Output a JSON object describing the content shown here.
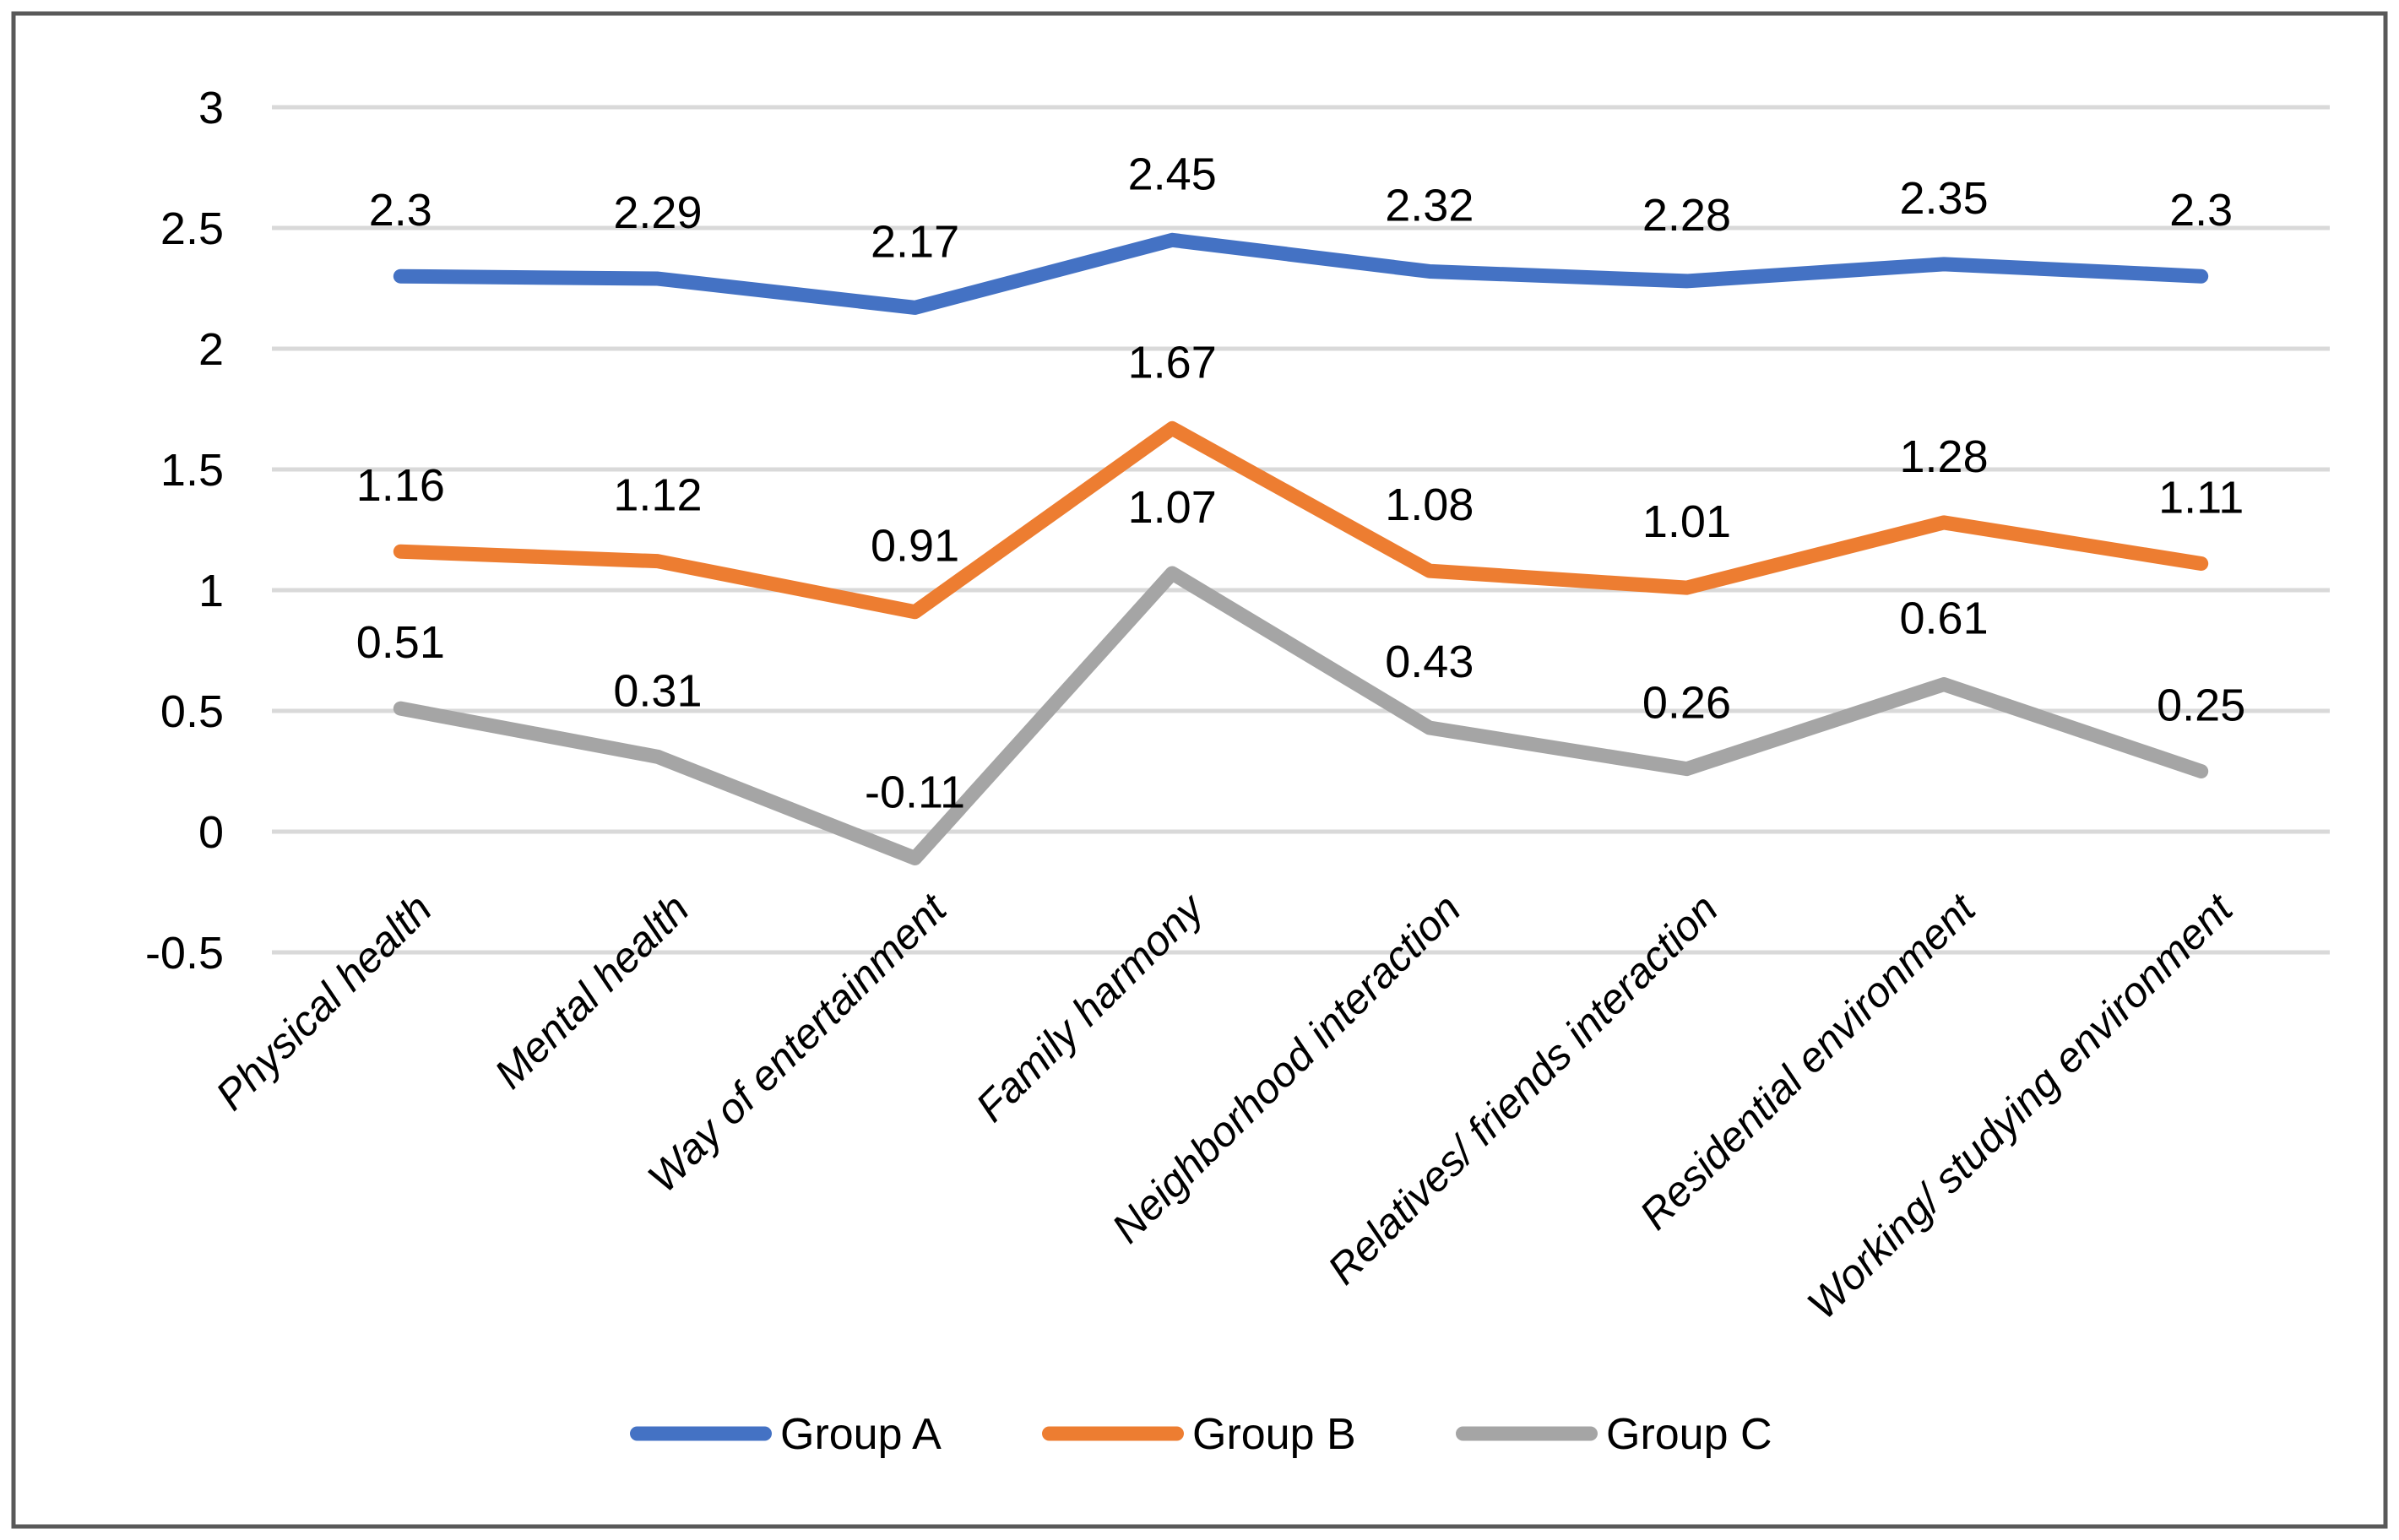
{
  "figure": {
    "background": "#FFFFFF",
    "border_color": "#595959",
    "text_color": "#000000"
  },
  "chart_data": {
    "type": "line",
    "title": "",
    "xlabel": "",
    "ylabel": "",
    "categories": [
      "Physical health",
      "Mental health",
      "Way of entertainment",
      "Family harmony",
      "Neighborhood interaction",
      "Relatives/ friends interaction",
      "Residential environment",
      "Working/ studying environment"
    ],
    "series": [
      {
        "name": "Group A",
        "color": "#4472C4",
        "values": [
          2.3,
          2.29,
          2.17,
          2.45,
          2.32,
          2.28,
          2.35,
          2.3
        ]
      },
      {
        "name": "Group B",
        "color": "#ED7D31",
        "values": [
          1.16,
          1.12,
          0.91,
          1.67,
          1.08,
          1.01,
          1.28,
          1.11
        ]
      },
      {
        "name": "Group C",
        "color": "#A5A5A5",
        "values": [
          0.51,
          0.31,
          -0.11,
          1.07,
          0.43,
          0.26,
          0.61,
          0.25
        ]
      }
    ],
    "y_ticks": [
      3,
      2.5,
      2,
      1.5,
      1,
      0.5,
      0,
      -0.5
    ],
    "ylim": [
      -0.5,
      3
    ],
    "grid": true,
    "gridline_color": "#D9D9D9",
    "data_labels": true,
    "legend_position": "bottom"
  }
}
